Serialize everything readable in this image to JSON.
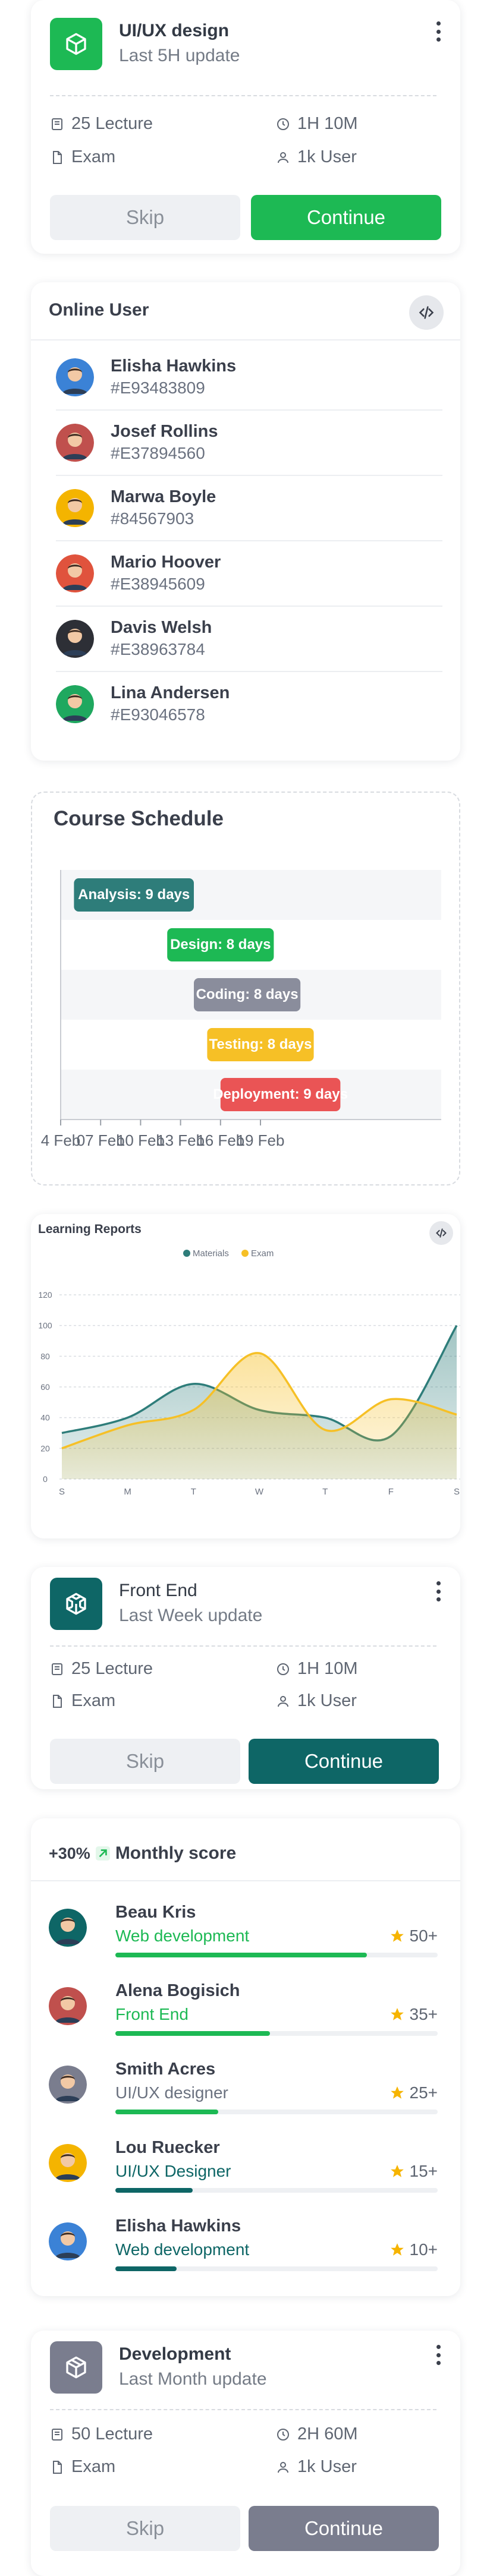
{
  "course_cards": [
    {
      "title": "UI/UX design",
      "subtitle": "Last 5H update",
      "icon": "cube-icon",
      "icon_color": "#1db954",
      "lecture": "25 Lecture",
      "duration": "1H 10M",
      "exam": "Exam",
      "users": "1k User",
      "skip": "Skip",
      "continue": "Continue",
      "continue_color": "#1db954"
    },
    {
      "title": "Front End",
      "subtitle": "Last Week update",
      "icon": "codesandbox-icon",
      "icon_color": "#0e6666",
      "lecture": "25 Lecture",
      "duration": "1H 10M",
      "exam": "Exam",
      "users": "1k User",
      "skip": "Skip",
      "continue": "Continue",
      "continue_color": "#0e6666"
    },
    {
      "title": "Development",
      "subtitle": "Last Month update",
      "icon": "box-icon",
      "icon_color": "#7a7d8e",
      "lecture": "50 Lecture",
      "duration": "2H 60M",
      "exam": "Exam",
      "users": "1k User",
      "skip": "Skip",
      "continue": "Continue",
      "continue_color": "#7a7d8e"
    }
  ],
  "online_user": {
    "title": "Online User",
    "users": [
      {
        "name": "Elisha Hawkins",
        "id": "#E93483809",
        "bg": "#3b82d6"
      },
      {
        "name": "Josef Rollins",
        "id": "#E37894560",
        "bg": "#c0504d"
      },
      {
        "name": "Marwa Boyle",
        "id": "#84567903",
        "bg": "#f4b400"
      },
      {
        "name": "Mario Hoover",
        "id": "#E38945609",
        "bg": "#e0533d"
      },
      {
        "name": "Davis Welsh",
        "id": "#E38963784",
        "bg": "#2d2f36"
      },
      {
        "name": "Lina Andersen",
        "id": "#E93046578",
        "bg": "#1fa85f"
      }
    ]
  },
  "course_schedule": {
    "title": "Course Schedule"
  },
  "learning_reports": {
    "title": "Learning Reports"
  },
  "monthly_score": {
    "badge": "+30%",
    "title": "Monthly score",
    "rows": [
      {
        "name": "Beau Kris",
        "role": "Web development",
        "score": "50+",
        "progress": 0.78,
        "bar_color": "#1db954",
        "role_color": "#1db954",
        "bg": "#0e6666"
      },
      {
        "name": "Alena Bogisich",
        "role": "Front End",
        "score": "35+",
        "progress": 0.48,
        "bar_color": "#1db954",
        "role_color": "#1db954",
        "bg": "#c0504d"
      },
      {
        "name": "Smith Acres",
        "role": "UI/UX designer",
        "score": "25+",
        "progress": 0.32,
        "bar_color": "#1db954",
        "role_color": "#6b7280",
        "bg": "#7a7d8e"
      },
      {
        "name": "Lou Ruecker",
        "role": "UI/UX Designer",
        "score": "15+",
        "progress": 0.24,
        "bar_color": "#0e6666",
        "role_color": "#0e6666",
        "bg": "#f4b400"
      },
      {
        "name": "Elisha Hawkins",
        "role": "Web development",
        "score": "10+",
        "progress": 0.19,
        "bar_color": "#0e6666",
        "role_color": "#0e6666",
        "bg": "#3b82d6"
      }
    ]
  },
  "chart_data": [
    {
      "type": "bar",
      "subtype": "gantt",
      "title": "Course Schedule",
      "tasks": [
        {
          "label": "Analysis: 9 days",
          "start": "2023-02-05",
          "end": "2023-02-14",
          "color": "#2e7d7a"
        },
        {
          "label": "Design: 8 days",
          "start": "2023-02-12",
          "end": "2023-02-20",
          "color": "#1db954"
        },
        {
          "label": "Coding: 8 days",
          "start": "2023-02-14",
          "end": "2023-02-22",
          "color": "#8a8d9c"
        },
        {
          "label": "Testing: 8 days",
          "start": "2023-02-15",
          "end": "2023-02-23",
          "color": "#f6c026"
        },
        {
          "label": "Deployment: 9 days",
          "start": "2023-02-16",
          "end": "2023-02-25",
          "color": "#ea5455"
        }
      ],
      "x_tick_labels": [
        "4 Feb",
        "07 Feb",
        "10 Feb",
        "13 Feb",
        "16 Feb",
        "19 Feb"
      ]
    },
    {
      "type": "area",
      "title": "Learning Reports",
      "categories": [
        "S",
        "M",
        "T",
        "W",
        "T",
        "F",
        "S"
      ],
      "series": [
        {
          "name": "Materials",
          "color": "#2e7d7a",
          "values": [
            30,
            40,
            62,
            45,
            40,
            28,
            100
          ]
        },
        {
          "name": "Exam",
          "color": "#f6c026",
          "values": [
            20,
            35,
            45,
            82,
            32,
            52,
            42
          ]
        }
      ],
      "ylim": [
        0,
        120
      ],
      "y_ticks": [
        0,
        20,
        40,
        60,
        80,
        100,
        120
      ],
      "legend": "top-center",
      "grid": true
    }
  ]
}
